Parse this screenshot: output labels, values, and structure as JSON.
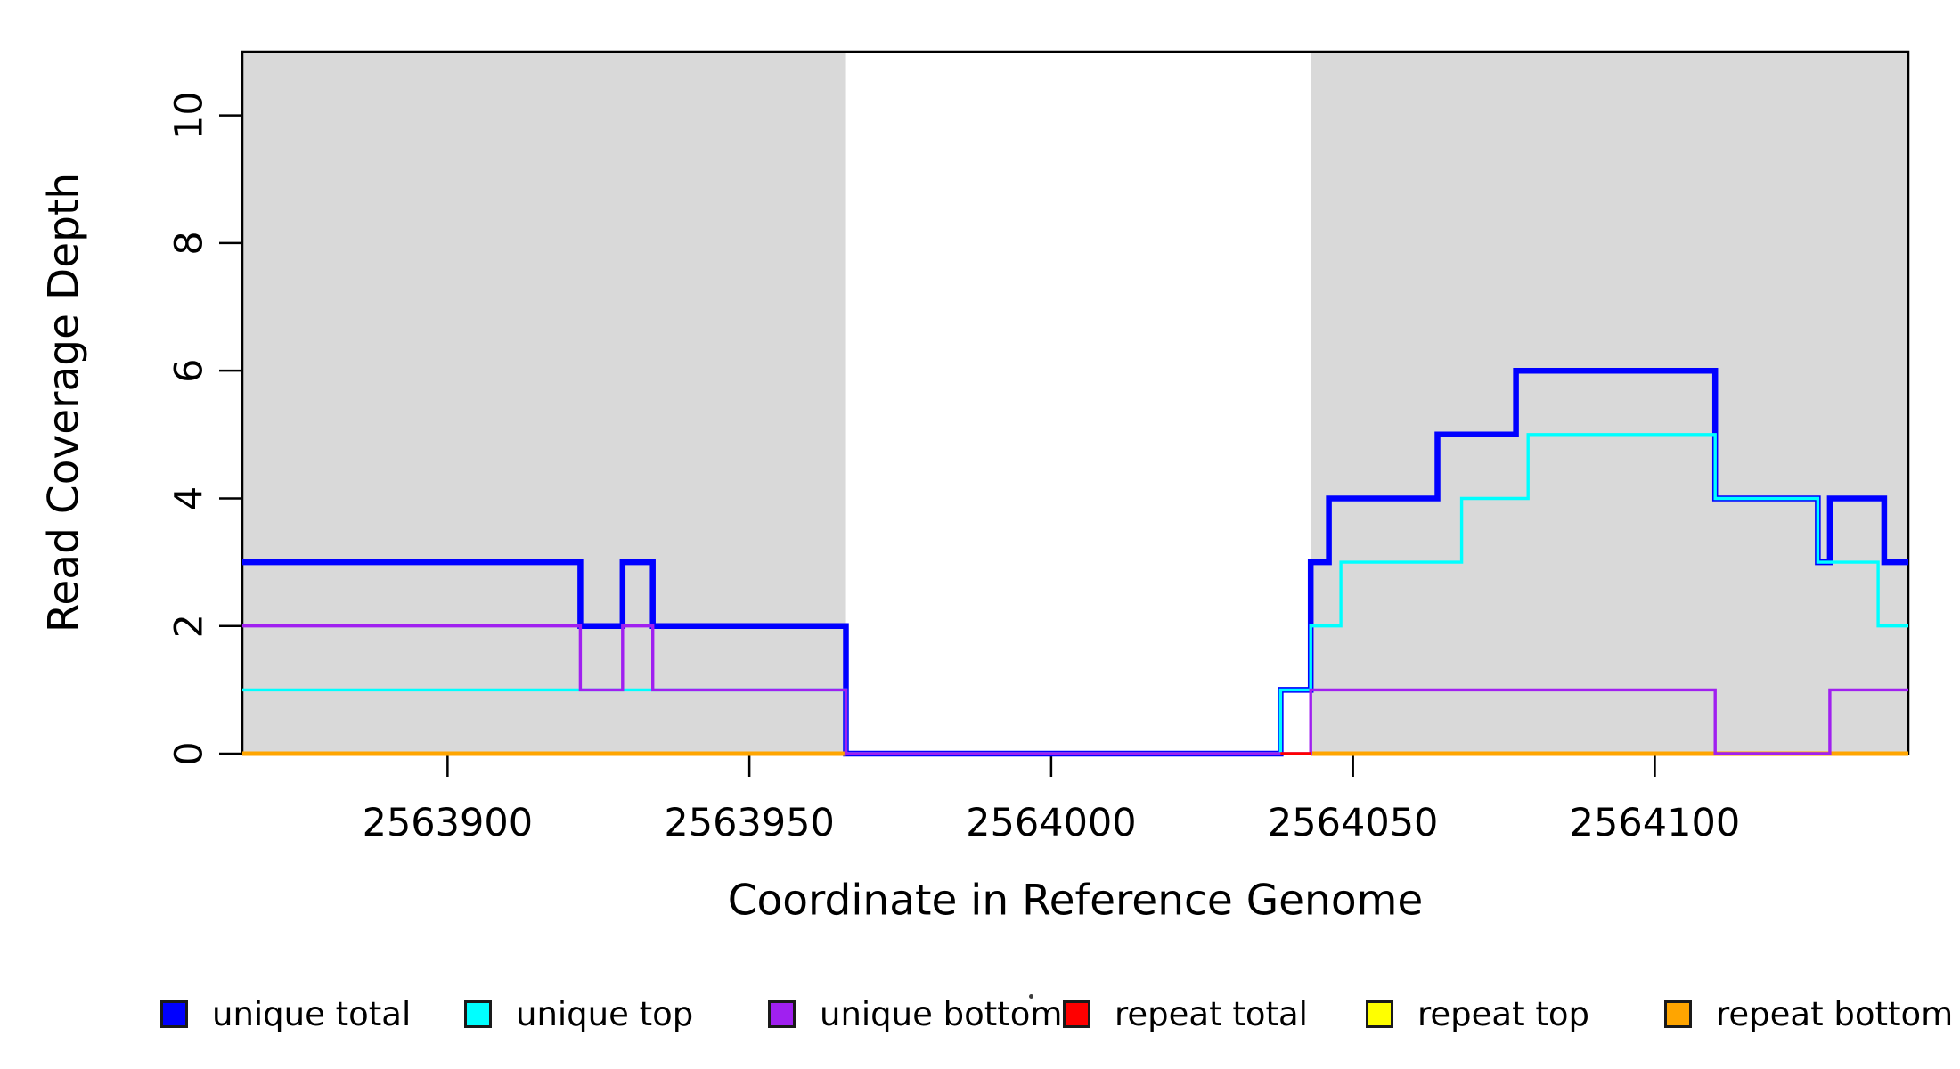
{
  "chart_data": {
    "type": "line",
    "subtype": "step-coverage-profile",
    "title": "",
    "xlabel": "Coordinate in Reference Genome",
    "ylabel": "Read Coverage Depth",
    "xlim": [
      2563866,
      2564142
    ],
    "ylim": [
      0,
      11
    ],
    "grid": false,
    "x_ticks": [
      2563900,
      2563950,
      2564000,
      2564050,
      2564100
    ],
    "x_tick_labels": [
      "2563900",
      "2563950",
      "2564000",
      "2564050",
      "2564100"
    ],
    "y_ticks": [
      0,
      2,
      4,
      6,
      8,
      10
    ],
    "y_tick_labels": [
      "0",
      "2",
      "4",
      "6",
      "8",
      "10"
    ],
    "background_regions": [
      {
        "name": "shaded-region-left",
        "x0": 2563866,
        "x1": 2563966,
        "color": "#d9d9d9"
      },
      {
        "name": "shaded-region-right",
        "x0": 2564043,
        "x1": 2564142,
        "color": "#d9d9d9"
      }
    ],
    "series": [
      {
        "name": "unique total",
        "color": "#0000ff",
        "linewidth": 6.5,
        "segments": [
          {
            "steps": [
              [
                2563866,
                3
              ],
              [
                2563922,
                2
              ],
              [
                2563929,
                3
              ],
              [
                2563934,
                2
              ],
              [
                2563966,
                0
              ],
              [
                2564038,
                1
              ],
              [
                2564043,
                3
              ],
              [
                2564046,
                4
              ],
              [
                2564064,
                5
              ],
              [
                2564077,
                6
              ],
              [
                2564110,
                4
              ],
              [
                2564127,
                3
              ],
              [
                2564129,
                4
              ],
              [
                2564138,
                3
              ]
            ],
            "end": 2564142
          }
        ]
      },
      {
        "name": "unique top",
        "color": "#00ffff",
        "linewidth": 3.4,
        "segments": [
          {
            "steps": [
              [
                2563866,
                1
              ],
              [
                2563966,
                0
              ],
              [
                2564038,
                1
              ],
              [
                2564043,
                2
              ],
              [
                2564048,
                3
              ],
              [
                2564068,
                4
              ],
              [
                2564079,
                5
              ],
              [
                2564110,
                4
              ],
              [
                2564127,
                3
              ],
              [
                2564137,
                2
              ]
            ],
            "end": 2564142
          }
        ]
      },
      {
        "name": "repeat top",
        "color": "#ffff00",
        "linewidth": 3.4,
        "segments": [
          {
            "steps": [
              [
                2563866,
                0
              ]
            ],
            "end": 2563966
          },
          {
            "steps": [
              [
                2564043,
                0
              ]
            ],
            "end": 2564142
          }
        ]
      },
      {
        "name": "repeat bottom",
        "color": "#ffa500",
        "linewidth": 5,
        "segments": [
          {
            "steps": [
              [
                2563866,
                0
              ]
            ],
            "end": 2563966
          },
          {
            "steps": [
              [
                2564043,
                0
              ]
            ],
            "end": 2564142
          }
        ]
      },
      {
        "name": "unique bottom",
        "color": "#a020f0",
        "linewidth": 3.4,
        "segments": [
          {
            "steps": [
              [
                2563866,
                2
              ],
              [
                2563922,
                1
              ],
              [
                2563929,
                2
              ],
              [
                2563934,
                1
              ],
              [
                2563966,
                0
              ],
              [
                2564043,
                1
              ],
              [
                2564110,
                0
              ],
              [
                2564129,
                1
              ]
            ],
            "end": 2564142
          }
        ]
      },
      {
        "name": "repeat total",
        "color": "#ff0000",
        "linewidth": 3.4,
        "segments": [
          {
            "steps": [
              [
                2564038,
                0
              ]
            ],
            "end": 2564043
          }
        ]
      }
    ],
    "legend": {
      "position": "bottom",
      "items": [
        {
          "label": "unique total",
          "color": "#0000ff"
        },
        {
          "label": "unique top",
          "color": "#00ffff"
        },
        {
          "label": "unique bottom",
          "color": "#a020f0"
        },
        {
          "label": "repeat total",
          "color": "#ff0000"
        },
        {
          "label": "repeat top",
          "color": "#ffff00"
        },
        {
          "label": "repeat bottom",
          "color": "#ffa500"
        }
      ]
    },
    "axis_color": "#000000",
    "plot_background": "#ffffff"
  }
}
